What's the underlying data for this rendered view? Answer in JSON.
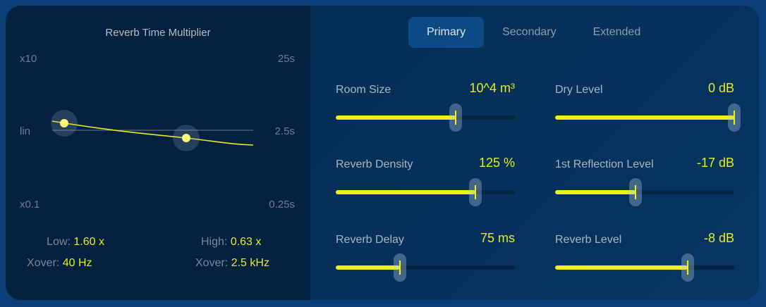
{
  "graph": {
    "title": "Reverb Time Multiplier",
    "left_axis": {
      "top": "x10",
      "mid": "lin",
      "bottom": "x0.1"
    },
    "right_axis": {
      "top": "25s",
      "mid": "2.5s",
      "bottom": "0.25s"
    },
    "low": {
      "label": "Low:",
      "value": "1.60 x"
    },
    "high": {
      "label": "High:",
      "value": "0.63 x"
    },
    "low_xover": {
      "label": "Xover:",
      "value": "40 Hz"
    },
    "high_xover": {
      "label": "Xover:",
      "value": "2.5 kHz"
    }
  },
  "tabs": [
    {
      "label": "Primary",
      "selected": true
    },
    {
      "label": "Secondary"
    },
    {
      "label": "Extended"
    }
  ],
  "controls": [
    {
      "label": "Room Size",
      "value": "10^4 m³",
      "level": 0.67
    },
    {
      "label": "Dry Level",
      "value": "0 dB",
      "level": 1.0
    },
    {
      "label": "Reverb Density",
      "value": "125 %",
      "level": 0.78
    },
    {
      "label": "1st Reflection Level",
      "value": "-17 dB",
      "level": 0.45
    },
    {
      "label": "Reverb Delay",
      "value": "75 ms",
      "level": 0.36
    },
    {
      "label": "Reverb Level",
      "value": "-8 dB",
      "level": 0.74
    }
  ],
  "colors": {
    "accent": "#f0f018",
    "background": "#0b3f78"
  }
}
